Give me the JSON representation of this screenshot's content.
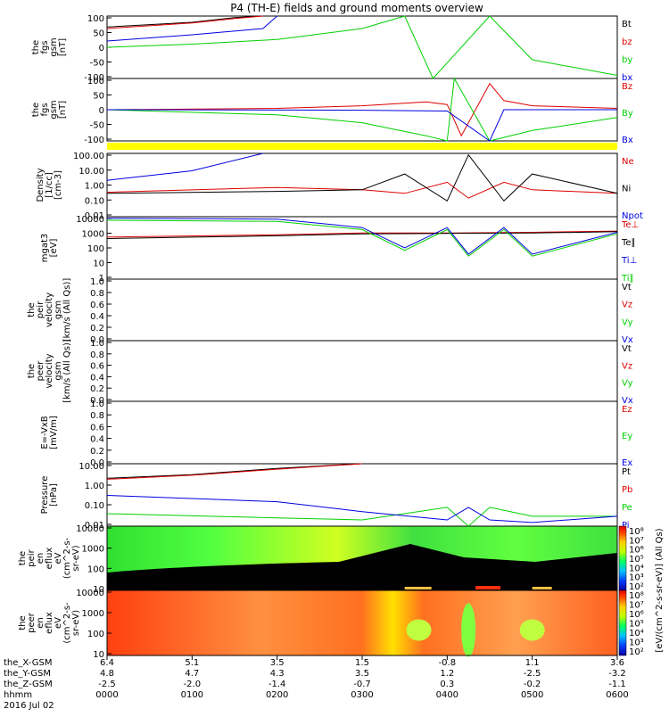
{
  "title": "P4 (TH-E) fields and ground moments overview",
  "colors": {
    "black": "#000000",
    "red": "#e00000",
    "green": "#00d000",
    "blue": "#0000e0",
    "yellow": "#ffff00"
  },
  "panels": [
    {
      "id": "p1",
      "ylabel": [
        "the",
        "fgs",
        "gsm",
        "[nT]"
      ],
      "ticks": [
        "100",
        "50",
        "0",
        "-50",
        "-100"
      ],
      "legend": [
        {
          "t": "Bt",
          "c": "black"
        },
        {
          "t": "bz",
          "c": "red"
        },
        {
          "t": "by",
          "c": "green"
        },
        {
          "t": "bx",
          "c": "blue"
        }
      ]
    },
    {
      "id": "p2",
      "ylabel": [
        "the",
        "fgs",
        "gsm",
        "[nT]"
      ],
      "ticks": [
        "100",
        "50",
        "0",
        "-50",
        "-100"
      ],
      "legend": [
        {
          "t": "Bz",
          "c": "red"
        },
        {
          "t": "By",
          "c": "green"
        },
        {
          "t": "Bx",
          "c": "blue"
        }
      ]
    },
    {
      "id": "p3",
      "ylabel": [
        "Density",
        "[1/cc]",
        "[cm-3]"
      ],
      "ticks": [
        "100.00",
        "10.00",
        "1.00",
        "0.10",
        "0.01"
      ],
      "legend": [
        {
          "t": "Ne",
          "c": "red"
        },
        {
          "t": "Ni",
          "c": "black"
        },
        {
          "t": "Npot",
          "c": "blue"
        }
      ]
    },
    {
      "id": "p4",
      "ylabel": [
        "mgat3",
        "[eV]"
      ],
      "ticks": [
        "10000",
        "1000",
        "100",
        "10",
        "1"
      ],
      "legend": [
        {
          "t": "Te⊥",
          "c": "red"
        },
        {
          "t": "Te∥",
          "c": "black"
        },
        {
          "t": "Ti⊥",
          "c": "blue"
        },
        {
          "t": "Ti∥",
          "c": "green"
        }
      ]
    },
    {
      "id": "p5",
      "ylabel": [
        "the",
        "peir",
        "velocity",
        "gsm",
        "[km/s (All Qs)]"
      ],
      "ticks": [
        "1.0",
        "0.8",
        "0.6",
        "0.4",
        "0.2",
        "0.0"
      ],
      "legend": [
        {
          "t": "Vt",
          "c": "black"
        },
        {
          "t": "Vz",
          "c": "red"
        },
        {
          "t": "Vy",
          "c": "green"
        },
        {
          "t": "Vx",
          "c": "blue"
        }
      ]
    },
    {
      "id": "p6",
      "ylabel": [
        "the",
        "peer",
        "velocity",
        "gsm",
        "[km/s (All Qs)]"
      ],
      "ticks": [
        "1.0",
        "0.8",
        "0.6",
        "0.4",
        "0.2",
        "0.0"
      ],
      "legend": [
        {
          "t": "Vt",
          "c": "black"
        },
        {
          "t": "Vz",
          "c": "red"
        },
        {
          "t": "Vy",
          "c": "green"
        },
        {
          "t": "Vx",
          "c": "blue"
        }
      ]
    },
    {
      "id": "p7",
      "ylabel": [
        "E=-VxB",
        "[mV/m]"
      ],
      "ticks": [
        "1.0",
        "0.8",
        "0.6",
        "0.4",
        "0.2",
        "0.0"
      ],
      "legend": [
        {
          "t": "Ez",
          "c": "red"
        },
        {
          "t": "Ey",
          "c": "green"
        },
        {
          "t": "Ex",
          "c": "blue"
        }
      ]
    },
    {
      "id": "p8",
      "ylabel": [
        "Pressure",
        "[nPa]"
      ],
      "ticks": [
        "10.00",
        "1.00",
        "0.10",
        "0.01"
      ],
      "legend": [
        {
          "t": "Pt",
          "c": "black"
        },
        {
          "t": "Pb",
          "c": "red"
        },
        {
          "t": "Pe",
          "c": "green"
        },
        {
          "t": "Pi",
          "c": "blue"
        }
      ]
    },
    {
      "id": "p9",
      "ylabel": [
        "the",
        "peir",
        "en",
        "eflux",
        "eV",
        "(cm^2-s-",
        "sr-eV)"
      ],
      "ticks": [
        "10000",
        "1000",
        "100",
        "10"
      ],
      "legend": []
    },
    {
      "id": "p10",
      "ylabel": [
        "the",
        "peer",
        "en",
        "eflux",
        "eV",
        "(cm^2-s-",
        "sr-eV)"
      ],
      "ticks": [
        "10000",
        "1000",
        "100",
        "10"
      ],
      "legend": []
    }
  ],
  "colorbar": {
    "label": "[eV/(cm^2-s-sr-eV)] (All Qs)",
    "top_label": "[eV/(cm^2-s-sr-eV)] (All Qs)",
    "ticks_top": [
      "10⁸",
      "10⁷",
      "10⁶",
      "10⁵",
      "10⁴",
      "10³",
      "10²"
    ],
    "ticks_bot": [
      "10⁸",
      "10⁷",
      "10⁶",
      "10⁵",
      "10⁴",
      "10³",
      "10²"
    ]
  },
  "bottom": {
    "row_labels": [
      "the_X-GSM",
      "the_Y-GSM",
      "the_Z-GSM",
      "hhmm",
      "2016 Jul 02"
    ],
    "columns": [
      [
        "6.4",
        "4.8",
        "-2.5",
        "0000"
      ],
      [
        "5.1",
        "4.7",
        "-2.0",
        "0100"
      ],
      [
        "3.5",
        "4.3",
        "-1.4",
        "0200"
      ],
      [
        "1.5",
        "3.5",
        "-0.7",
        "0300"
      ],
      [
        "-0.8",
        "1.2",
        "0.3",
        "0400"
      ],
      [
        "1.1",
        "-2.5",
        "-0.2",
        "0500"
      ],
      [
        "3.6",
        "-3.2",
        "-1.1",
        "0600"
      ]
    ]
  },
  "chart_data": {
    "type": "line",
    "title": "P4 (TH-E) fields and ground moments overview",
    "x_unit": "hhmm",
    "x_ticks": [
      "0000",
      "0100",
      "0200",
      "0300",
      "0400",
      "0500",
      "0600"
    ],
    "xlim": [
      "0000",
      "0600"
    ],
    "subplots": [
      {
        "name": "the fgs gsm [nT]",
        "ylim": [
          -100,
          100
        ],
        "series": [
          {
            "name": "Bt",
            "x": [
              "0000",
              "0100",
              "0130",
              "0150"
            ],
            "values": [
              65,
              80,
              95,
              100
            ]
          },
          {
            "name": "bz",
            "x": [
              "0000",
              "0100",
              "0130",
              "0150"
            ],
            "values": [
              60,
              78,
              92,
              100
            ]
          },
          {
            "name": "by",
            "x": [
              "0000",
              "0100",
              "0200",
              "0300",
              "0330",
              "0350",
              "0430",
              "0500",
              "0600"
            ],
            "values": [
              0,
              10,
              25,
              60,
              100,
              -100,
              100,
              -40,
              -90
            ]
          },
          {
            "name": "bx",
            "x": [
              "0000",
              "0100",
              "0150",
              "0200"
            ],
            "values": [
              20,
              40,
              60,
              100
            ]
          }
        ]
      },
      {
        "name": "the fgs gsm [nT] (2)",
        "ylim": [
          -120,
          120
        ],
        "series": [
          {
            "name": "Bz",
            "x": [
              "0000",
              "0200",
              "0300",
              "0345",
              "0400",
              "0410",
              "0430",
              "0440",
              "0500",
              "0600"
            ],
            "values": [
              0,
              5,
              15,
              30,
              20,
              -100,
              100,
              35,
              15,
              5
            ]
          },
          {
            "name": "By",
            "x": [
              "0000",
              "0200",
              "0300",
              "0345",
              "0400",
              "0405",
              "0430",
              "0500",
              "0600"
            ],
            "values": [
              0,
              -20,
              -50,
              -100,
              -120,
              120,
              -120,
              -80,
              -30
            ]
          },
          {
            "name": "Bx",
            "x": [
              "0000",
              "0300",
              "0400",
              "0430",
              "0440",
              "0600"
            ],
            "values": [
              0,
              -2,
              -5,
              -120,
              0,
              0
            ]
          }
        ]
      },
      {
        "name": "Density [1/cc]",
        "ylim": [
          0.01,
          100
        ],
        "scale": "log",
        "series": [
          {
            "name": "Ne",
            "x": [
              "0000",
              "0200",
              "0300",
              "0330",
              "0400",
              "0415",
              "0440",
              "0500",
              "0600"
            ],
            "values": [
              0.35,
              0.7,
              0.5,
              0.3,
              1.5,
              0.15,
              1.5,
              0.5,
              0.3
            ]
          },
          {
            "name": "Ni",
            "x": [
              "0000",
              "0200",
              "0300",
              "0330",
              "0400",
              "0415",
              "0440",
              "0500",
              "0600"
            ],
            "values": [
              0.3,
              0.4,
              0.5,
              5,
              0.1,
              80,
              0.1,
              5,
              0.3
            ]
          },
          {
            "name": "Npot",
            "x": [
              "0000",
              "0100",
              "0150"
            ],
            "values": [
              2,
              8,
              100
            ]
          }
        ]
      },
      {
        "name": "mgat3 [eV]",
        "ylim": [
          1,
          10000
        ],
        "scale": "log",
        "series": [
          {
            "name": "Te⊥",
            "x": [
              "0000",
              "0200",
              "0300",
              "0400",
              "0500",
              "0600"
            ],
            "values": [
              500,
              700,
              900,
              900,
              1000,
              1200
            ]
          },
          {
            "name": "Te∥",
            "x": [
              "0000",
              "0200",
              "0300",
              "0400",
              "0500",
              "0600"
            ],
            "values": [
              400,
              600,
              800,
              850,
              900,
              1100
            ]
          },
          {
            "name": "Ti⊥",
            "x": [
              "0000",
              "0200",
              "0300",
              "0330",
              "0400",
              "0415",
              "0440",
              "0500",
              "0600"
            ],
            "values": [
              8000,
              7000,
              2000,
              100,
              2000,
              40,
              2000,
              40,
              1000
            ]
          },
          {
            "name": "Ti∥",
            "x": [
              "0000",
              "0200",
              "0300",
              "0330",
              "0400",
              "0415",
              "0440",
              "0500",
              "0600"
            ],
            "values": [
              6000,
              5000,
              1500,
              70,
              1500,
              30,
              1500,
              30,
              800
            ]
          }
        ]
      },
      {
        "name": "the peir velocity gsm",
        "ylim": [
          0,
          1
        ],
        "series": []
      },
      {
        "name": "the peer velocity gsm",
        "ylim": [
          0,
          1
        ],
        "series": []
      },
      {
        "name": "E=-VxB [mV/m]",
        "ylim": [
          0,
          1
        ],
        "series": []
      },
      {
        "name": "Pressure [nPa]",
        "ylim": [
          0.01,
          10
        ],
        "scale": "log",
        "series": [
          {
            "name": "Pt",
            "x": [
              "0000",
              "0100",
              "0200",
              "0300"
            ],
            "values": [
              2,
              3,
              6,
              12
            ]
          },
          {
            "name": "Pb",
            "x": [
              "0000",
              "0100",
              "0200",
              "0300"
            ],
            "values": [
              1.8,
              2.8,
              5.5,
              11
            ]
          },
          {
            "name": "Pe",
            "x": [
              "0000",
              "0200",
              "0300",
              "0400",
              "0415",
              "0430",
              "0500",
              "0600"
            ],
            "values": [
              0.04,
              0.025,
              0.02,
              0.08,
              0.01,
              0.08,
              0.03,
              0.03
            ]
          },
          {
            "name": "Pi",
            "x": [
              "0000",
              "0200",
              "0300",
              "0400",
              "0415",
              "0430",
              "0500",
              "0600"
            ],
            "values": [
              0.3,
              0.15,
              0.05,
              0.02,
              0.08,
              0.02,
              0.015,
              0.03
            ]
          }
        ]
      },
      {
        "name": "the peir en eflux",
        "type": "heatmap",
        "ylim": [
          10,
          10000
        ],
        "scale": "log"
      },
      {
        "name": "the peer en eflux",
        "type": "heatmap",
        "ylim": [
          10,
          10000
        ],
        "scale": "log"
      }
    ]
  }
}
